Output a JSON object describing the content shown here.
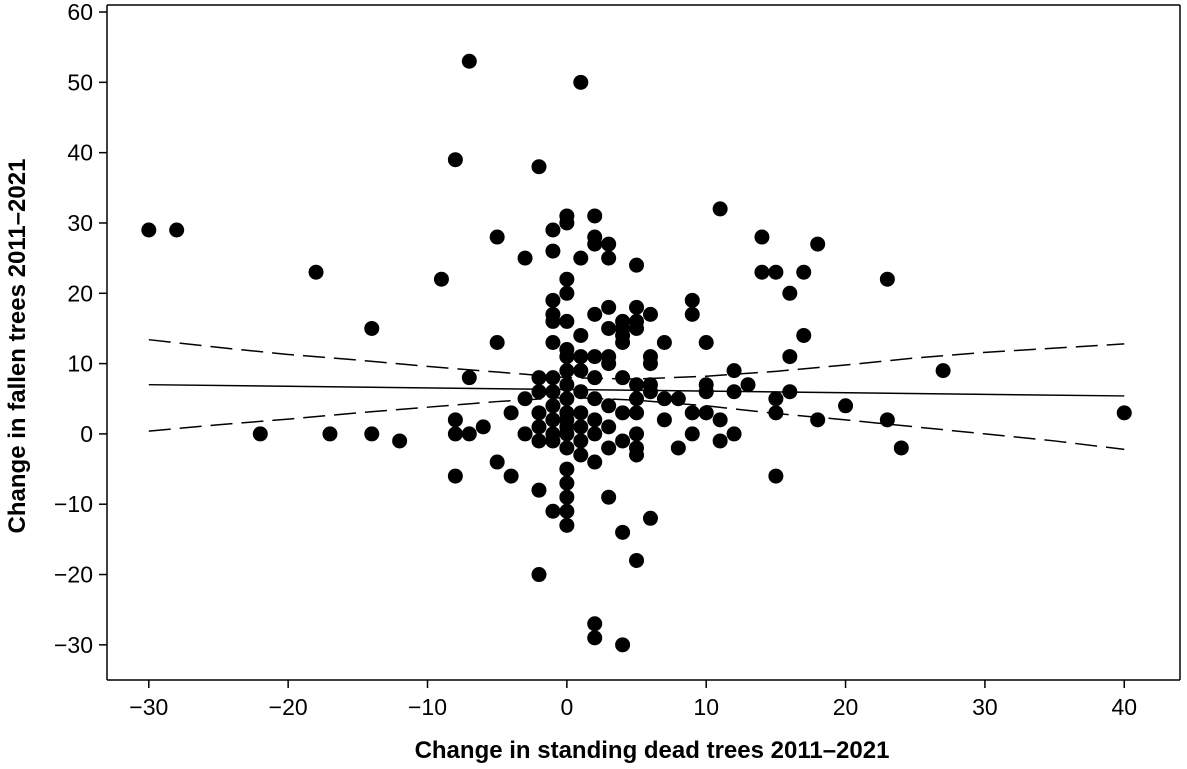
{
  "chart_data": {
    "type": "scatter",
    "title": "",
    "xlabel": "Change in standing dead trees 2011–2021",
    "ylabel": "Change in fallen trees 2011–2021",
    "xlim": [
      -33,
      44
    ],
    "ylim": [
      -35,
      61
    ],
    "xticks": [
      -30,
      -20,
      -10,
      0,
      10,
      20,
      30,
      40
    ],
    "yticks": [
      -30,
      -20,
      -10,
      0,
      10,
      20,
      30,
      40,
      50,
      60
    ],
    "xtick_labels": [
      "−30",
      "−20",
      "−10",
      "0",
      "10",
      "20",
      "30",
      "40"
    ],
    "ytick_labels": [
      "−30",
      "−20",
      "−10",
      "0",
      "10",
      "20",
      "30",
      "40",
      "50",
      "60"
    ],
    "grid": false,
    "points": [
      [
        -30,
        29
      ],
      [
        -28,
        29
      ],
      [
        -22,
        0
      ],
      [
        -18,
        23
      ],
      [
        -17,
        0
      ],
      [
        -14,
        15
      ],
      [
        -14,
        0
      ],
      [
        -12,
        -1
      ],
      [
        -9,
        22
      ],
      [
        -8,
        39
      ],
      [
        -8,
        2
      ],
      [
        -8,
        0
      ],
      [
        -8,
        -6
      ],
      [
        -7,
        53
      ],
      [
        -7,
        8
      ],
      [
        -7,
        0
      ],
      [
        -6,
        1
      ],
      [
        -5,
        28
      ],
      [
        -5,
        13
      ],
      [
        -5,
        -4
      ],
      [
        -4,
        3
      ],
      [
        -4,
        -6
      ],
      [
        -3,
        25
      ],
      [
        -3,
        5
      ],
      [
        -3,
        0
      ],
      [
        -2,
        38
      ],
      [
        -2,
        8
      ],
      [
        -2,
        6
      ],
      [
        -2,
        3
      ],
      [
        -2,
        1
      ],
      [
        -2,
        -1
      ],
      [
        -2,
        -8
      ],
      [
        -2,
        -20
      ],
      [
        -1,
        29
      ],
      [
        -1,
        26
      ],
      [
        -1,
        19
      ],
      [
        -1,
        17
      ],
      [
        -1,
        16
      ],
      [
        -1,
        13
      ],
      [
        -1,
        8
      ],
      [
        -1,
        6
      ],
      [
        -1,
        4
      ],
      [
        -1,
        2
      ],
      [
        -1,
        0
      ],
      [
        -1,
        -1
      ],
      [
        -1,
        -11
      ],
      [
        0,
        31
      ],
      [
        0,
        30
      ],
      [
        0,
        22
      ],
      [
        0,
        20
      ],
      [
        0,
        16
      ],
      [
        0,
        12
      ],
      [
        0,
        11
      ],
      [
        0,
        9
      ],
      [
        0,
        7
      ],
      [
        0,
        5
      ],
      [
        0,
        3
      ],
      [
        0,
        2
      ],
      [
        0,
        1
      ],
      [
        0,
        0
      ],
      [
        0,
        -2
      ],
      [
        0,
        -5
      ],
      [
        0,
        -7
      ],
      [
        0,
        -9
      ],
      [
        0,
        -11
      ],
      [
        0,
        -13
      ],
      [
        1,
        50
      ],
      [
        1,
        25
      ],
      [
        1,
        14
      ],
      [
        1,
        11
      ],
      [
        1,
        9
      ],
      [
        1,
        6
      ],
      [
        1,
        3
      ],
      [
        1,
        1
      ],
      [
        1,
        -1
      ],
      [
        1,
        -3
      ],
      [
        2,
        31
      ],
      [
        2,
        28
      ],
      [
        2,
        27
      ],
      [
        2,
        17
      ],
      [
        2,
        11
      ],
      [
        2,
        8
      ],
      [
        2,
        5
      ],
      [
        2,
        2
      ],
      [
        2,
        0
      ],
      [
        2,
        -4
      ],
      [
        2,
        -27
      ],
      [
        2,
        -29
      ],
      [
        3,
        27
      ],
      [
        3,
        25
      ],
      [
        3,
        18
      ],
      [
        3,
        15
      ],
      [
        3,
        11
      ],
      [
        3,
        10
      ],
      [
        3,
        4
      ],
      [
        3,
        1
      ],
      [
        3,
        -2
      ],
      [
        3,
        -9
      ],
      [
        4,
        16
      ],
      [
        4,
        15
      ],
      [
        4,
        14
      ],
      [
        4,
        13
      ],
      [
        4,
        8
      ],
      [
        4,
        3
      ],
      [
        4,
        -1
      ],
      [
        4,
        -14
      ],
      [
        4,
        -30
      ],
      [
        5,
        24
      ],
      [
        5,
        18
      ],
      [
        5,
        16
      ],
      [
        5,
        15
      ],
      [
        5,
        7
      ],
      [
        5,
        5
      ],
      [
        5,
        3
      ],
      [
        5,
        0
      ],
      [
        5,
        -2
      ],
      [
        5,
        -3
      ],
      [
        5,
        -18
      ],
      [
        6,
        17
      ],
      [
        6,
        11
      ],
      [
        6,
        10
      ],
      [
        6,
        7
      ],
      [
        6,
        6
      ],
      [
        6,
        -12
      ],
      [
        7,
        13
      ],
      [
        7,
        5
      ],
      [
        7,
        2
      ],
      [
        8,
        5
      ],
      [
        8,
        -2
      ],
      [
        9,
        19
      ],
      [
        9,
        17
      ],
      [
        9,
        3
      ],
      [
        9,
        0
      ],
      [
        10,
        13
      ],
      [
        10,
        7
      ],
      [
        10,
        6
      ],
      [
        10,
        3
      ],
      [
        11,
        32
      ],
      [
        11,
        2
      ],
      [
        11,
        -1
      ],
      [
        12,
        9
      ],
      [
        12,
        6
      ],
      [
        12,
        0
      ],
      [
        13,
        7
      ],
      [
        14,
        28
      ],
      [
        14,
        23
      ],
      [
        15,
        23
      ],
      [
        15,
        5
      ],
      [
        15,
        3
      ],
      [
        15,
        -6
      ],
      [
        16,
        20
      ],
      [
        16,
        11
      ],
      [
        16,
        6
      ],
      [
        17,
        23
      ],
      [
        17,
        14
      ],
      [
        18,
        27
      ],
      [
        18,
        2
      ],
      [
        20,
        4
      ],
      [
        23,
        22
      ],
      [
        23,
        2
      ],
      [
        24,
        -2
      ],
      [
        27,
        9
      ],
      [
        40,
        3
      ]
    ],
    "fit_line": {
      "x": [
        -30,
        40
      ],
      "y": [
        7.0,
        5.4
      ]
    },
    "confidence_upper": {
      "x": [
        -30,
        -25,
        -20,
        -15,
        -10,
        -5,
        0,
        5,
        10,
        15,
        20,
        25,
        30,
        35,
        40
      ],
      "y": [
        13.4,
        12.3,
        11.3,
        10.5,
        9.6,
        8.8,
        8.0,
        7.8,
        8.2,
        8.9,
        9.8,
        10.8,
        11.6,
        12.2,
        12.8
      ]
    },
    "confidence_lower": {
      "x": [
        -30,
        -25,
        -20,
        -15,
        -10,
        -5,
        0,
        5,
        10,
        15,
        20,
        25,
        30,
        35,
        40
      ],
      "y": [
        0.4,
        1.3,
        2.1,
        3.0,
        3.8,
        4.6,
        5.2,
        4.8,
        4.0,
        2.9,
        2.0,
        1.0,
        0.0,
        -1.0,
        -2.2
      ]
    }
  }
}
